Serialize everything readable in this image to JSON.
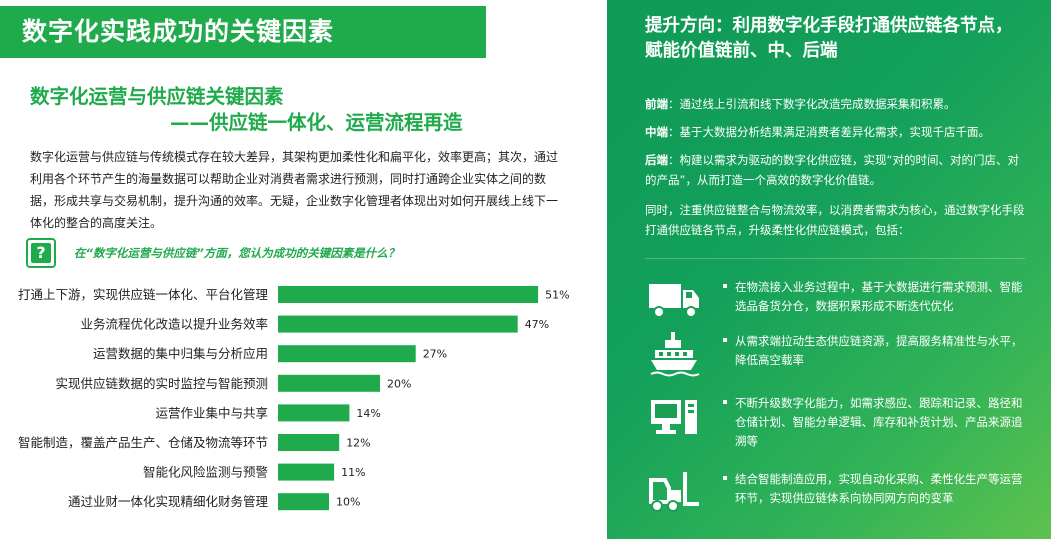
{
  "left": {
    "title": "数字化实践成功的关键因素",
    "subtitle_line1": "数字化运营与供应链关键因素",
    "subtitle_line2": "——供应链一体化、运营流程再造",
    "body": "数字化运营与供应链与传统模式存在较大差异，其架构更加柔性化和扁平化，效率更高；其次，通过利用各个环节产生的海量数据可以帮助企业对消费者需求进行预测，同时打通跨企业实体之间的数据，形成共享与交易机制，提升沟通的效率。无疑，企业数字化管理者体现出对如何开展线上线下一体化的整合的高度关注。",
    "question_icon": "?",
    "question": "在“数字化运营与供应链”方面，您认为成功的关键因素是什么？"
  },
  "chart_data": {
    "type": "bar",
    "orientation": "horizontal",
    "title": "在“数字化运营与供应链”方面，您认为成功的关键因素是什么？",
    "categories": [
      "打通上下游，实现供应链一体化、平台化管理",
      "业务流程优化改造以提升业务效率",
      "运营数据的集中归集与分析应用",
      "实现供应链数据的实时监控与智能预测",
      "运营作业集中与共享",
      "智能制造，覆盖产品生产、仓储及物流等环节",
      "智能化风险监测与预警",
      "通过业财一体化实现精细化财务管理"
    ],
    "values": [
      51,
      47,
      27,
      20,
      14,
      12,
      11,
      10
    ],
    "value_labels": [
      "51%",
      "47%",
      "27%",
      "20%",
      "14%",
      "12%",
      "11%",
      "10%"
    ],
    "unit": "%",
    "xlim": [
      0,
      60
    ],
    "grid": false,
    "bar_color": "#1faa4c"
  },
  "right": {
    "title": "提升方向：利用数字化手段打通供应链各节点，赋能价值链前、中、后端",
    "front_label": "前端",
    "front_text": "：通过线上引流和线下数字化改造完成数据采集和积累。",
    "mid_label": "中端",
    "mid_text": "：基于大数据分析结果满足消费者差异化需求，实现千店千面。",
    "back_label": "后端",
    "back_text": "：构建以需求为驱动的数字化供应链，实现“对的时间、对的门店、对的产品”，从而打造一个高效的数字化价值链。",
    "summary": "同时，注重供应链整合与物流效率，以消费者需求为核心，通过数字化手段打通供应链各节点，升级柔性化供应链模式，包括：",
    "items": [
      {
        "icon": "truck-icon",
        "text": "在物流接入业务过程中，基于大数据进行需求预测、智能选品备货分仓，数据积累形成不断迭代优化"
      },
      {
        "icon": "ship-icon",
        "text": "从需求端拉动生态供应链资源，提高服务精准性与水平，降低高空载率"
      },
      {
        "icon": "computer-icon",
        "text": "不断升级数字化能力，如需求感应、跟踪和记录、路径和仓储计划、智能分单逻辑、库存和补货计划、产品来源追溯等"
      },
      {
        "icon": "forklift-icon",
        "text": "结合智能制造应用，实现自动化采购、柔性化生产等运营环节，实现供应链体系向协同网方向的变革"
      }
    ]
  },
  "colors": {
    "brand_green": "#1faa4c",
    "text": "#222222",
    "white": "#ffffff"
  }
}
